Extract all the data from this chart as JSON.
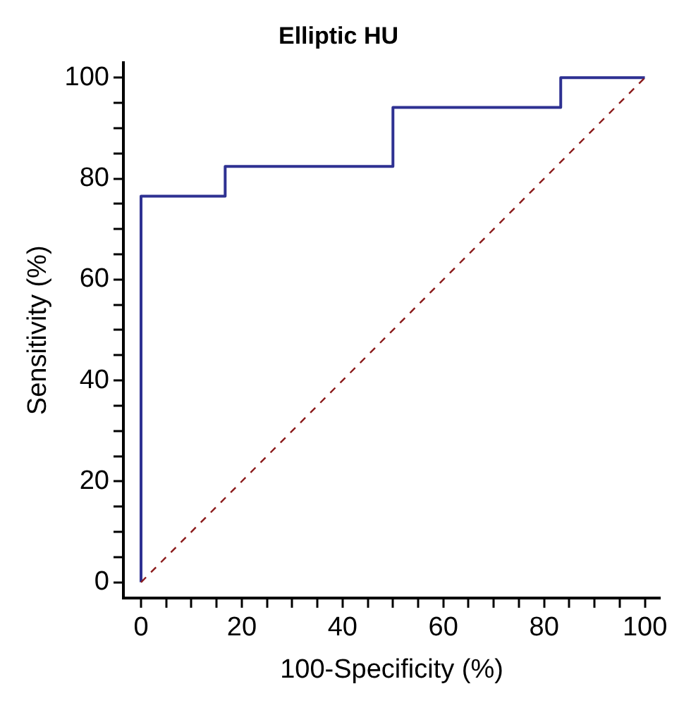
{
  "chart_data": {
    "type": "step",
    "title": "Elliptic HU",
    "xlabel": "100-Specificity (%)",
    "ylabel": "Sensitivity (%)",
    "series": [
      {
        "color": "#2e3192",
        "x": [
          0,
          0,
          16.7,
          50,
          83.3,
          100
        ],
        "values": [
          0,
          76.5,
          82.4,
          94.1,
          100,
          100
        ],
        "line_style": "solid"
      },
      {
        "type": "line",
        "color": "#8b1a1a",
        "x": [
          0,
          100
        ],
        "values": [
          0,
          100
        ],
        "line_style": "dashed"
      }
    ],
    "xlim": [
      -3.5,
      103
    ],
    "ylim": [
      -3.1,
      103
    ],
    "xticks": [
      0,
      {
        "value": 5,
        "label": null
      },
      {
        "value": 10,
        "label": null
      },
      {
        "value": 15,
        "label": null
      },
      20,
      {
        "value": 25,
        "label": null
      },
      {
        "value": 30,
        "label": null
      },
      {
        "value": 35,
        "label": null
      },
      40,
      {
        "value": 45,
        "label": null
      },
      {
        "value": 50,
        "label": null
      },
      {
        "value": 55,
        "label": null
      },
      60,
      {
        "value": 65,
        "label": null
      },
      {
        "value": 70,
        "label": null
      },
      {
        "value": 75,
        "label": null
      },
      80,
      {
        "value": 85,
        "label": null
      },
      {
        "value": 90,
        "label": null
      },
      {
        "value": 95,
        "label": null
      },
      100
    ],
    "yticks": [
      0,
      {
        "value": 5,
        "label": null
      },
      {
        "value": 10,
        "label": null
      },
      {
        "value": 15,
        "label": null
      },
      20,
      {
        "value": 25,
        "label": null
      },
      {
        "value": 30,
        "label": null
      },
      {
        "value": 35,
        "label": null
      },
      40,
      {
        "value": 45,
        "label": null
      },
      {
        "value": 50,
        "label": null
      },
      {
        "value": 55,
        "label": null
      },
      60,
      {
        "value": 65,
        "label": null
      },
      {
        "value": 70,
        "label": null
      },
      {
        "value": 75,
        "label": null
      },
      80,
      {
        "value": 85,
        "label": null
      },
      {
        "value": 90,
        "label": null
      },
      {
        "value": 95,
        "label": null
      },
      100
    ],
    "grid": false,
    "legend": false,
    "marker": "none"
  }
}
